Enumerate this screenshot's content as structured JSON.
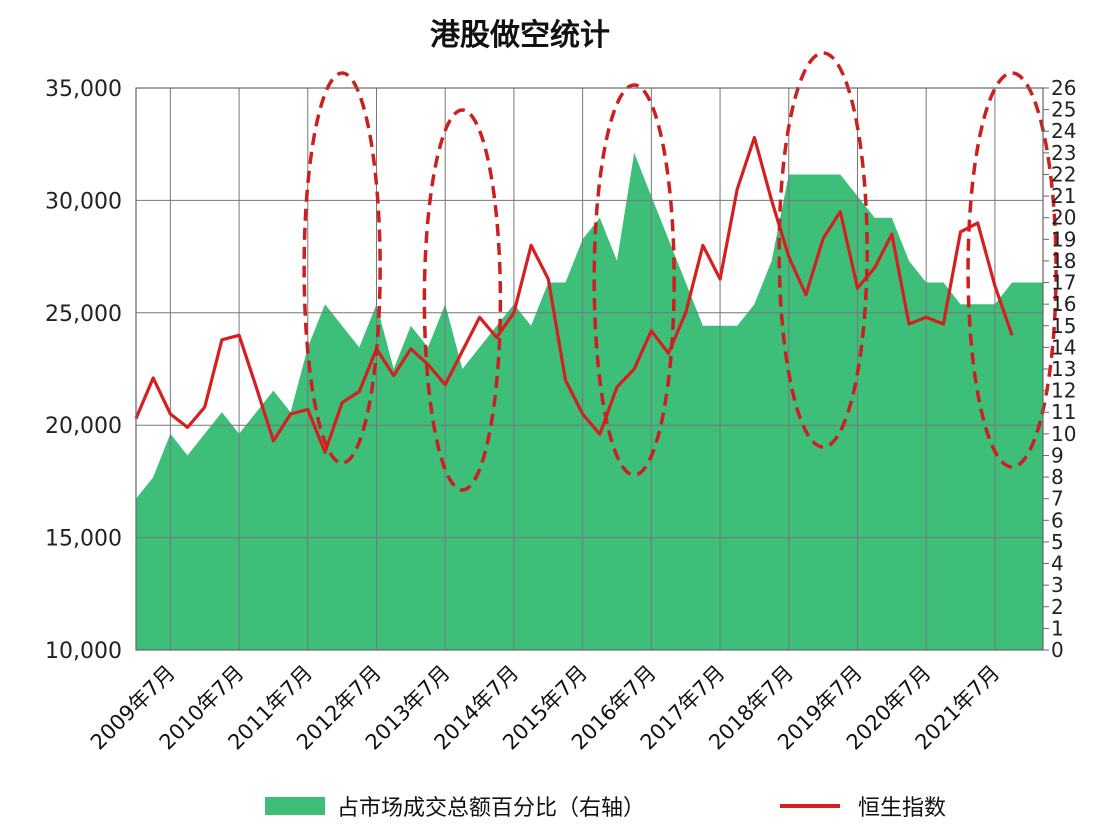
{
  "chart_data": {
    "type": "line",
    "title": "港股做空统计",
    "xlabel": "",
    "ylabel": "",
    "x_ticks": [
      "2009年7月",
      "2010年7月",
      "2011年7月",
      "2012年7月",
      "2013年7月",
      "2014年7月",
      "2015年7月",
      "2016年7月",
      "2017年7月",
      "2018年7月",
      "2019年7月",
      "2020年7月",
      "2021年7月"
    ],
    "ylim_left": [
      10000,
      35000
    ],
    "yticks_left": [
      "10,000",
      "15,000",
      "20,000",
      "25,000",
      "30,000",
      "35,000"
    ],
    "ylim_right": [
      0,
      26
    ],
    "yticks_right": [
      "0",
      "1",
      "2",
      "3",
      "4",
      "5",
      "6",
      "7",
      "8",
      "9",
      "10",
      "11",
      "12",
      "13",
      "14",
      "15",
      "16",
      "17",
      "18",
      "19",
      "20",
      "21",
      "22",
      "23",
      "24",
      "25",
      "26"
    ],
    "grid": true,
    "legend_position": "bottom",
    "series": [
      {
        "name": "占市场成交总额百分比（右轴）",
        "axis": "right",
        "type": "area",
        "color": "#3dbf7a",
        "x": [
          "2009-01",
          "2009-04",
          "2009-07",
          "2009-10",
          "2010-01",
          "2010-04",
          "2010-07",
          "2010-10",
          "2011-01",
          "2011-04",
          "2011-07",
          "2011-10",
          "2012-01",
          "2012-04",
          "2012-07",
          "2012-10",
          "2013-01",
          "2013-04",
          "2013-07",
          "2013-10",
          "2014-01",
          "2014-04",
          "2014-07",
          "2014-10",
          "2015-01",
          "2015-04",
          "2015-07",
          "2015-10",
          "2016-01",
          "2016-04",
          "2016-07",
          "2016-10",
          "2017-01",
          "2017-04",
          "2017-07",
          "2017-10",
          "2018-01",
          "2018-04",
          "2018-07",
          "2018-10",
          "2019-01",
          "2019-04",
          "2019-07",
          "2019-10",
          "2020-01",
          "2020-04",
          "2020-07",
          "2020-10",
          "2021-01",
          "2021-04",
          "2021-07",
          "2021-10"
        ],
        "values": [
          7,
          8,
          10,
          9,
          10,
          11,
          10,
          11,
          12,
          11,
          14,
          16,
          15,
          14,
          16,
          13,
          15,
          14,
          16,
          13,
          14,
          15,
          16,
          15,
          17,
          17,
          19,
          20,
          18,
          23,
          21,
          19,
          17,
          15,
          15,
          15,
          16,
          18,
          22,
          22,
          22,
          22,
          21,
          20,
          20,
          18,
          17,
          17,
          16,
          16,
          16,
          17
        ]
      },
      {
        "name": "恒生指数",
        "axis": "left",
        "type": "line",
        "color": "#d42020",
        "x": [
          "2009-01",
          "2009-04",
          "2009-07",
          "2009-10",
          "2010-01",
          "2010-04",
          "2010-07",
          "2010-10",
          "2011-01",
          "2011-04",
          "2011-07",
          "2011-10",
          "2012-01",
          "2012-04",
          "2012-07",
          "2012-10",
          "2013-01",
          "2013-04",
          "2013-07",
          "2013-10",
          "2014-01",
          "2014-04",
          "2014-07",
          "2014-10",
          "2015-01",
          "2015-04",
          "2015-07",
          "2015-10",
          "2016-01",
          "2016-04",
          "2016-07",
          "2016-10",
          "2017-01",
          "2017-04",
          "2017-07",
          "2017-10",
          "2018-01",
          "2018-04",
          "2018-07",
          "2018-10",
          "2019-01",
          "2019-04",
          "2019-07",
          "2019-10",
          "2020-01",
          "2020-04",
          "2020-07",
          "2020-10",
          "2021-01",
          "2021-04",
          "2021-07",
          "2021-10"
        ],
        "values": [
          20300,
          22100,
          20500,
          19900,
          20800,
          23800,
          24000,
          21700,
          19300,
          20500,
          20700,
          18800,
          21000,
          21500,
          23400,
          22200,
          23400,
          22700,
          21800,
          23300,
          24800,
          23900,
          25000,
          28000,
          26500,
          22000,
          20500,
          19600,
          21700,
          22500,
          24200,
          23200,
          25000,
          28000,
          26500,
          30500,
          32800,
          30000,
          27500,
          25800,
          28300,
          29500,
          26100,
          27000,
          28500,
          24500,
          24800,
          24500,
          28600,
          29000,
          26200,
          24000
        ]
      }
    ],
    "annotations": [
      {
        "type": "dashed-ellipse",
        "around": "2012-01"
      },
      {
        "type": "dashed-ellipse",
        "around": "2013-10"
      },
      {
        "type": "dashed-ellipse",
        "around": "2016-04"
      },
      {
        "type": "dashed-ellipse",
        "around": "2019-01"
      },
      {
        "type": "dashed-ellipse",
        "around": "2021-10"
      }
    ]
  }
}
